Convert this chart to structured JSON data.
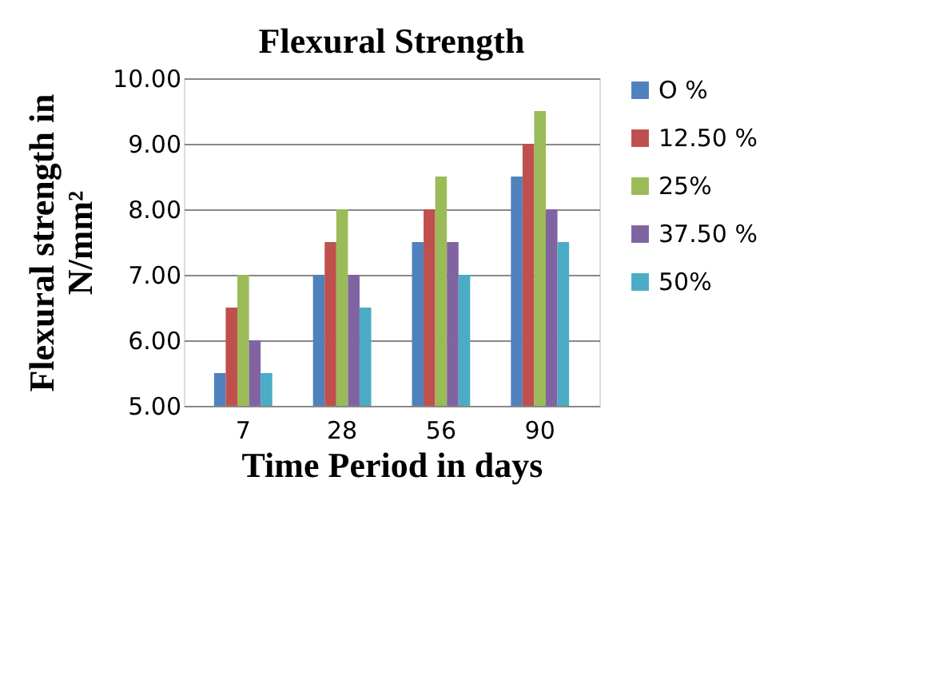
{
  "chart_data": {
    "type": "bar",
    "title": "Flexural Strength",
    "xlabel": "Time Period in days",
    "ylabel": "Flexural strength  in N/mm²",
    "categories": [
      "7",
      "28",
      "56",
      "90"
    ],
    "series": [
      {
        "name": "O %",
        "color": "#4f81bd",
        "values": [
          5.5,
          7,
          7.5,
          8.5
        ]
      },
      {
        "name": "12.50 %",
        "color": "#c0504d",
        "values": [
          6.5,
          7.5,
          8,
          9
        ]
      },
      {
        "name": "25%",
        "color": "#9bbb59",
        "values": [
          7,
          8,
          8.5,
          9.5
        ]
      },
      {
        "name": "37.50 %",
        "color": "#8064a2",
        "values": [
          6,
          7,
          7.5,
          8
        ]
      },
      {
        "name": "50%",
        "color": "#4bacc6",
        "values": [
          5.5,
          6.5,
          7,
          7.5
        ]
      }
    ],
    "ylim": [
      5,
      10
    ],
    "yticks": [
      {
        "value": 5,
        "label": "5.00"
      },
      {
        "value": 6,
        "label": "6.00"
      },
      {
        "value": 7,
        "label": "7.00"
      },
      {
        "value": 8,
        "label": "8.00"
      },
      {
        "value": 9,
        "label": "9.00"
      },
      {
        "value": 10,
        "label": "10.00"
      }
    ],
    "grid": "y",
    "legend": "right"
  }
}
